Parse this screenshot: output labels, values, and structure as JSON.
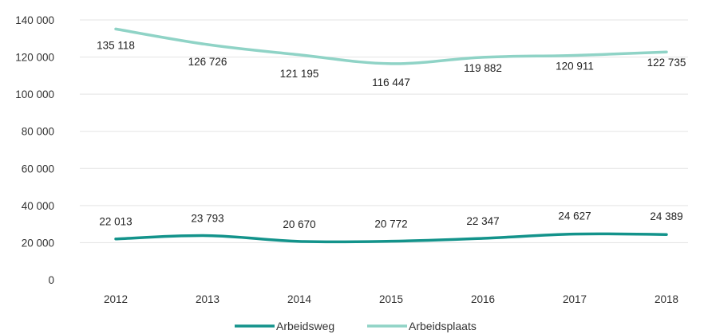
{
  "chart_data": {
    "type": "line",
    "categories": [
      "2012",
      "2013",
      "2014",
      "2015",
      "2016",
      "2017",
      "2018"
    ],
    "series": [
      {
        "name": "Arbeidsweg",
        "values": [
          22013,
          23793,
          20670,
          20772,
          22347,
          24627,
          24389
        ],
        "labels": [
          "22 013",
          "23 793",
          "20 670",
          "20 772",
          "22 347",
          "24 627",
          "24 389"
        ],
        "color": "#13938b"
      },
      {
        "name": "Arbeidsplaats",
        "values": [
          135118,
          126726,
          121195,
          116447,
          119882,
          120911,
          122735
        ],
        "labels": [
          "135 118",
          "126 726",
          "121 195",
          "116 447",
          "119 882",
          "120 911",
          "122 735"
        ],
        "color": "#8fd3c6"
      }
    ],
    "ylim": [
      0,
      140000
    ],
    "yticks": [
      0,
      20000,
      40000,
      60000,
      80000,
      100000,
      120000,
      140000
    ],
    "ytick_labels": [
      "0",
      "20 000",
      "40 000",
      "60 000",
      "80 000",
      "100 000",
      "120 000",
      "140 000"
    ],
    "grid": true,
    "legend_position": "bottom-center"
  }
}
